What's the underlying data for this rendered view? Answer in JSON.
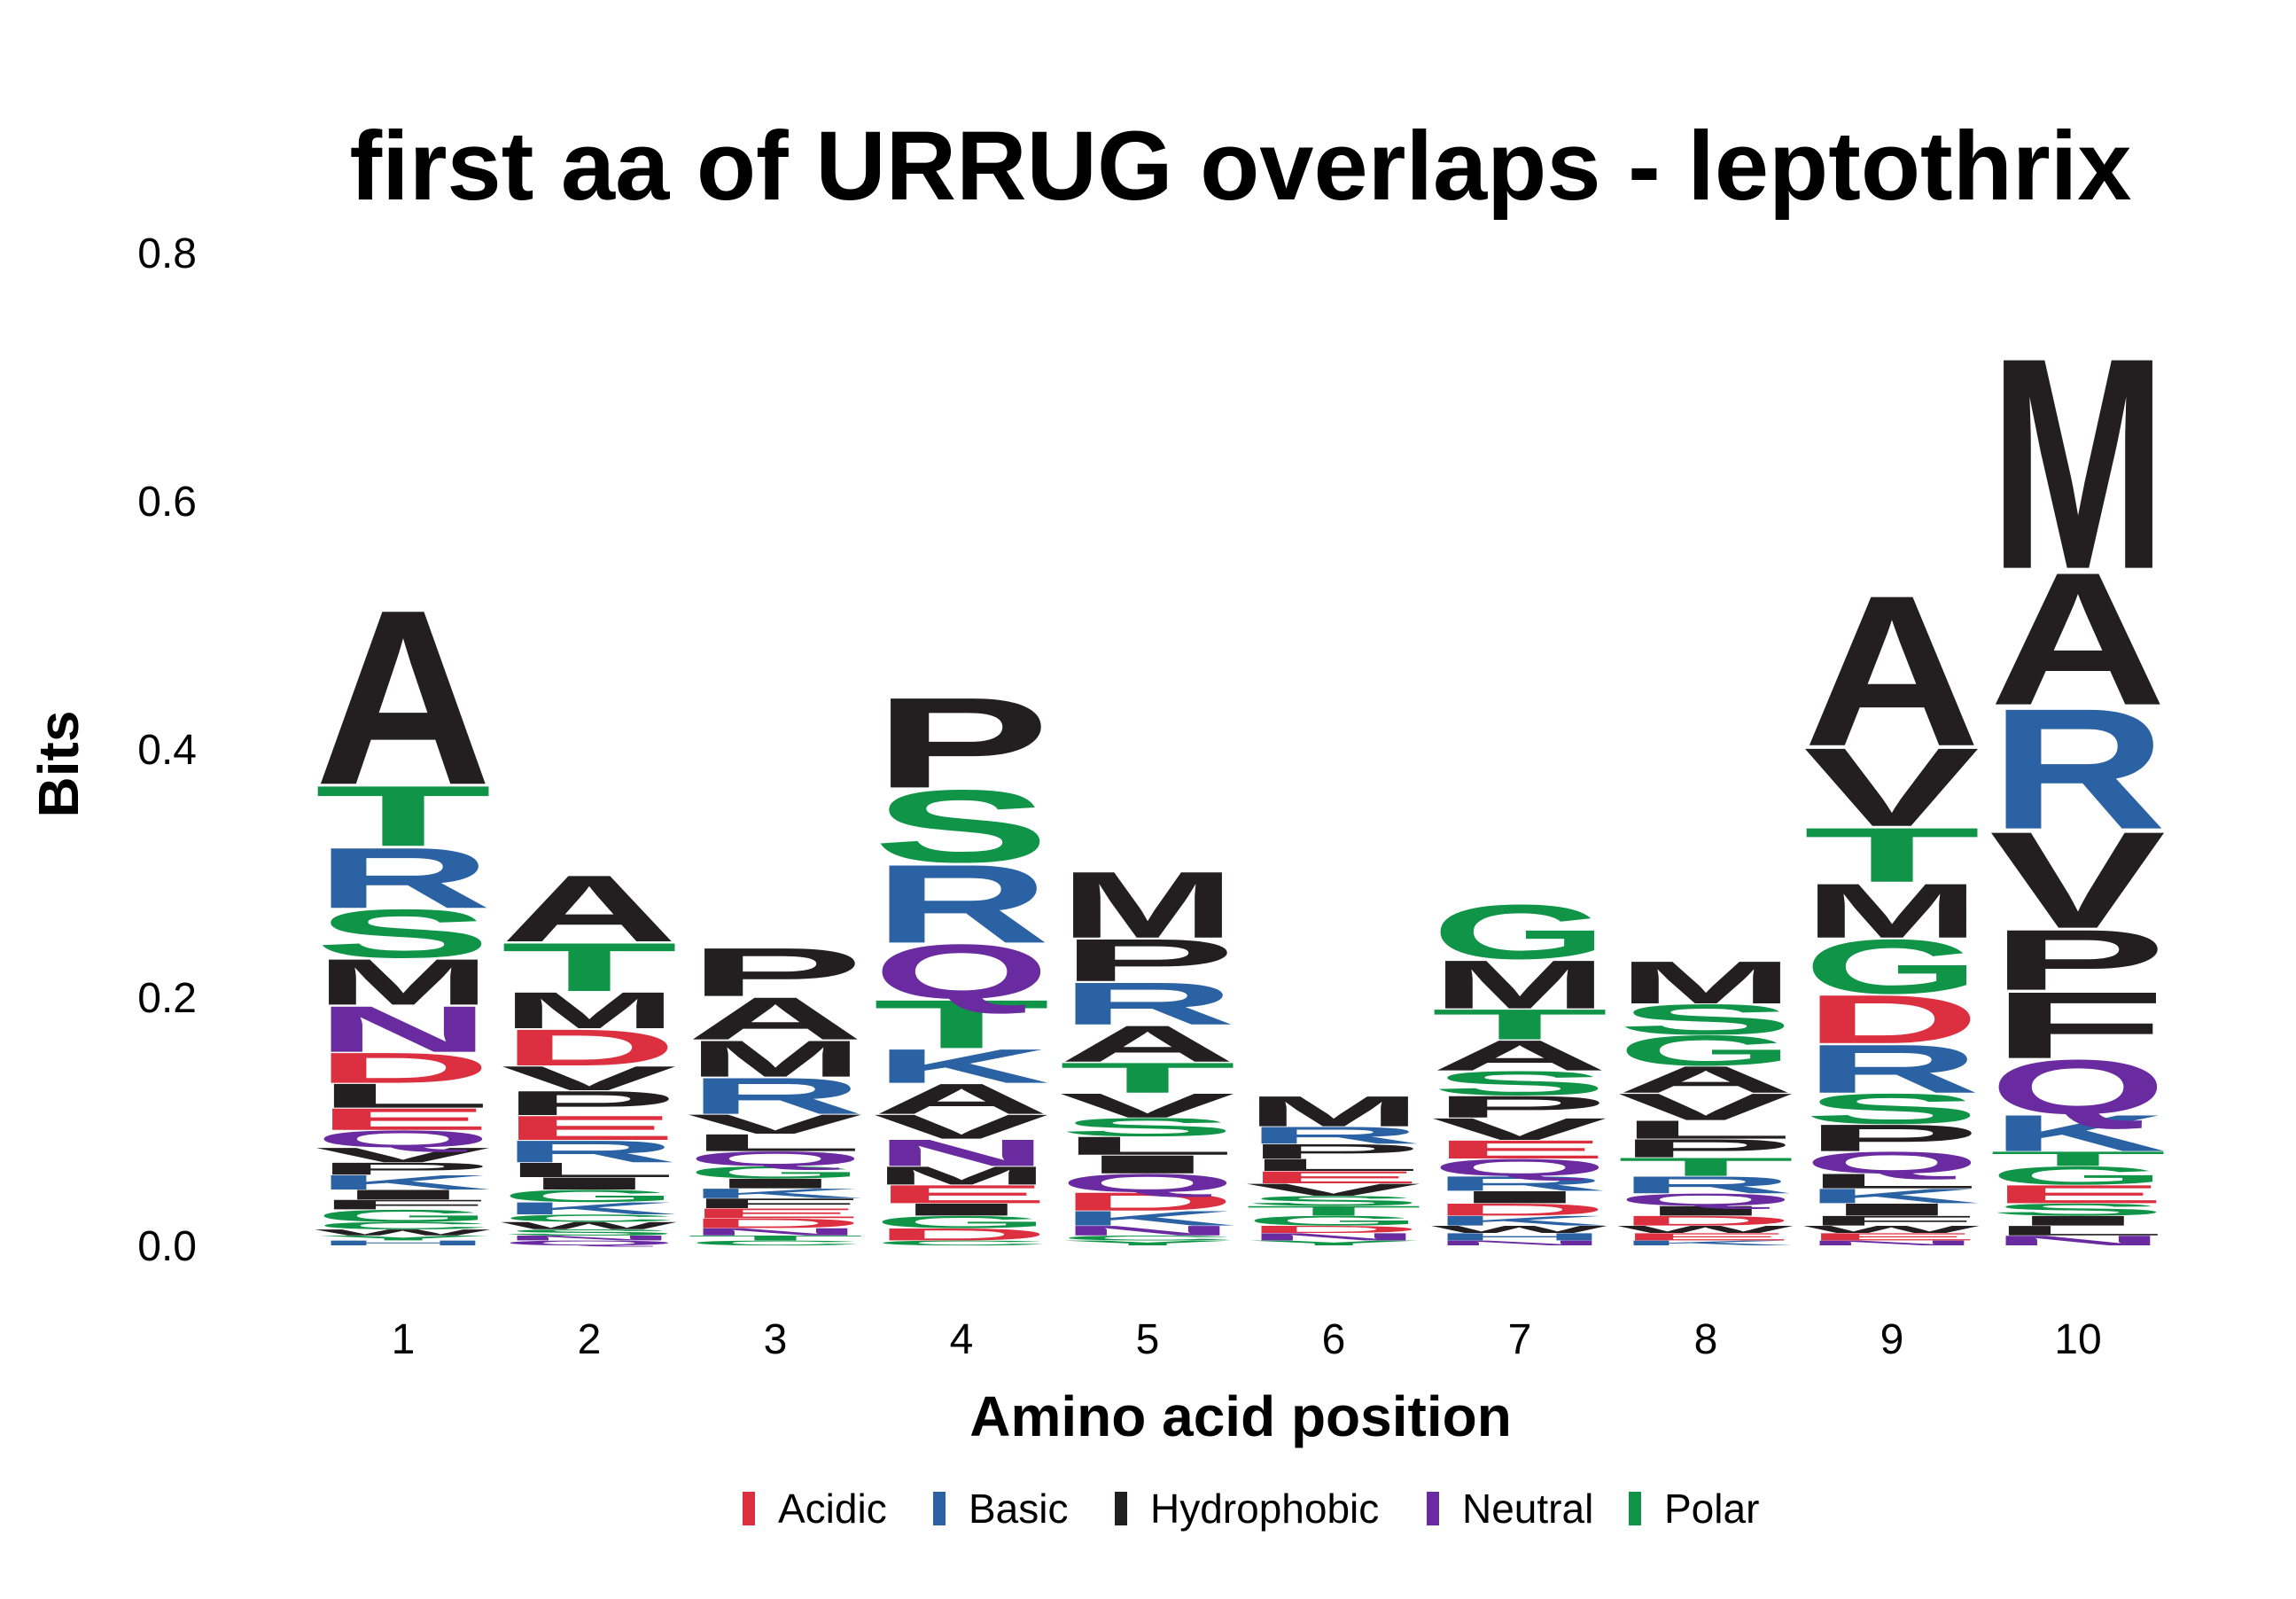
{
  "chart_data": {
    "type": "sequence-logo",
    "title": "first aa of URRUG overlaps - leptothrix",
    "xlabel": "Amino acid position",
    "ylabel": "Bits",
    "ylim": [
      0,
      0.8
    ],
    "yticks": [
      "0.0",
      "0.2",
      "0.4",
      "0.6",
      "0.8"
    ],
    "grid": false,
    "legend_position": "bottom",
    "class_colors": {
      "Acidic": "#DC2F3F",
      "Basic": "#2B62A3",
      "Hydrophobic": "#231F20",
      "Neutral": "#6A2BA0",
      "Polar": "#109447"
    },
    "legend": [
      "Acidic",
      "Basic",
      "Hydrophobic",
      "Neutral",
      "Polar"
    ],
    "residue_classes": {
      "D": "Acidic",
      "E": "Acidic",
      "H": "Basic",
      "K": "Basic",
      "R": "Basic",
      "A": "Hydrophobic",
      "F": "Hydrophobic",
      "I": "Hydrophobic",
      "L": "Hydrophobic",
      "M": "Hydrophobic",
      "P": "Hydrophobic",
      "V": "Hydrophobic",
      "W": "Hydrophobic",
      "N": "Neutral",
      "Q": "Neutral",
      "C": "Polar",
      "G": "Polar",
      "S": "Polar",
      "T": "Polar",
      "Y": "Polar"
    },
    "positions": [
      {
        "x": "1",
        "stack": [
          {
            "aa": "H",
            "bits": 0.004
          },
          {
            "aa": "Y",
            "bits": 0.004
          },
          {
            "aa": "W",
            "bits": 0.005
          },
          {
            "aa": "C",
            "bits": 0.006
          },
          {
            "aa": "G",
            "bits": 0.01
          },
          {
            "aa": "F",
            "bits": 0.008
          },
          {
            "aa": "I",
            "bits": 0.008
          },
          {
            "aa": "K",
            "bits": 0.012
          },
          {
            "aa": "P",
            "bits": 0.01
          },
          {
            "aa": "V",
            "bits": 0.012
          },
          {
            "aa": "Q",
            "bits": 0.014
          },
          {
            "aa": "E",
            "bits": 0.018
          },
          {
            "aa": "L",
            "bits": 0.02
          },
          {
            "aa": "D",
            "bits": 0.025
          },
          {
            "aa": "N",
            "bits": 0.038
          },
          {
            "aa": "M",
            "bits": 0.038
          },
          {
            "aa": "S",
            "bits": 0.04
          },
          {
            "aa": "R",
            "bits": 0.05
          },
          {
            "aa": "T",
            "bits": 0.05
          },
          {
            "aa": "A",
            "bits": 0.145
          }
        ]
      },
      {
        "x": "2",
        "stack": [
          {
            "aa": "Q",
            "bits": 0.004
          },
          {
            "aa": "N",
            "bits": 0.004
          },
          {
            "aa": "S",
            "bits": 0.005
          },
          {
            "aa": "W",
            "bits": 0.006
          },
          {
            "aa": "C",
            "bits": 0.006
          },
          {
            "aa": "K",
            "bits": 0.01
          },
          {
            "aa": "G",
            "bits": 0.01
          },
          {
            "aa": "I",
            "bits": 0.01
          },
          {
            "aa": "L",
            "bits": 0.012
          },
          {
            "aa": "R",
            "bits": 0.018
          },
          {
            "aa": "E",
            "bits": 0.02
          },
          {
            "aa": "P",
            "bits": 0.02
          },
          {
            "aa": "V",
            "bits": 0.02
          },
          {
            "aa": "D",
            "bits": 0.03
          },
          {
            "aa": "M",
            "bits": 0.03
          },
          {
            "aa": "T",
            "bits": 0.04
          },
          {
            "aa": "A",
            "bits": 0.055
          }
        ]
      },
      {
        "x": "3",
        "stack": [
          {
            "aa": "C",
            "bits": 0.004
          },
          {
            "aa": "T",
            "bits": 0.004
          },
          {
            "aa": "N",
            "bits": 0.006
          },
          {
            "aa": "D",
            "bits": 0.008
          },
          {
            "aa": "E",
            "bits": 0.008
          },
          {
            "aa": "F",
            "bits": 0.008
          },
          {
            "aa": "K",
            "bits": 0.008
          },
          {
            "aa": "I",
            "bits": 0.008
          },
          {
            "aa": "G",
            "bits": 0.01
          },
          {
            "aa": "Q",
            "bits": 0.012
          },
          {
            "aa": "L",
            "bits": 0.014
          },
          {
            "aa": "V",
            "bits": 0.016
          },
          {
            "aa": "R",
            "bits": 0.03
          },
          {
            "aa": "M",
            "bits": 0.03
          },
          {
            "aa": "A",
            "bits": 0.035
          },
          {
            "aa": "P",
            "bits": 0.04
          }
        ]
      },
      {
        "x": "4",
        "stack": [
          {
            "aa": "C",
            "bits": 0.004
          },
          {
            "aa": "D",
            "bits": 0.01
          },
          {
            "aa": "G",
            "bits": 0.01
          },
          {
            "aa": "I",
            "bits": 0.01
          },
          {
            "aa": "E",
            "bits": 0.015
          },
          {
            "aa": "M",
            "bits": 0.015
          },
          {
            "aa": "N",
            "bits": 0.022
          },
          {
            "aa": "V",
            "bits": 0.02
          },
          {
            "aa": "A",
            "bits": 0.025
          },
          {
            "aa": "K",
            "bits": 0.028
          },
          {
            "aa": "T",
            "bits": 0.04
          },
          {
            "aa": "Q",
            "bits": 0.045
          },
          {
            "aa": "R",
            "bits": 0.065
          },
          {
            "aa": "S",
            "bits": 0.06
          },
          {
            "aa": "P",
            "bits": 0.075
          }
        ]
      },
      {
        "x": "5",
        "stack": [
          {
            "aa": "Y",
            "bits": 0.004
          },
          {
            "aa": "C",
            "bits": 0.004
          },
          {
            "aa": "N",
            "bits": 0.008
          },
          {
            "aa": "K",
            "bits": 0.012
          },
          {
            "aa": "D",
            "bits": 0.015
          },
          {
            "aa": "Q",
            "bits": 0.015
          },
          {
            "aa": "I",
            "bits": 0.015
          },
          {
            "aa": "L",
            "bits": 0.015
          },
          {
            "aa": "S",
            "bits": 0.015
          },
          {
            "aa": "V",
            "bits": 0.02
          },
          {
            "aa": "T",
            "bits": 0.025
          },
          {
            "aa": "A",
            "bits": 0.03
          },
          {
            "aa": "R",
            "bits": 0.035
          },
          {
            "aa": "P",
            "bits": 0.035
          },
          {
            "aa": "M",
            "bits": 0.055
          }
        ]
      },
      {
        "x": "6",
        "stack": [
          {
            "aa": "Y",
            "bits": 0.004
          },
          {
            "aa": "N",
            "bits": 0.006
          },
          {
            "aa": "D",
            "bits": 0.006
          },
          {
            "aa": "G",
            "bits": 0.008
          },
          {
            "aa": "T",
            "bits": 0.008
          },
          {
            "aa": "S",
            "bits": 0.008
          },
          {
            "aa": "V",
            "bits": 0.01
          },
          {
            "aa": "E",
            "bits": 0.01
          },
          {
            "aa": "L",
            "bits": 0.01
          },
          {
            "aa": "P",
            "bits": 0.012
          },
          {
            "aa": "R",
            "bits": 0.014
          },
          {
            "aa": "M",
            "bits": 0.025
          }
        ]
      },
      {
        "x": "7",
        "stack": [
          {
            "aa": "N",
            "bits": 0.004
          },
          {
            "aa": "H",
            "bits": 0.006
          },
          {
            "aa": "W",
            "bits": 0.006
          },
          {
            "aa": "K",
            "bits": 0.008
          },
          {
            "aa": "D",
            "bits": 0.01
          },
          {
            "aa": "I",
            "bits": 0.01
          },
          {
            "aa": "R",
            "bits": 0.012
          },
          {
            "aa": "Q",
            "bits": 0.014
          },
          {
            "aa": "E",
            "bits": 0.015
          },
          {
            "aa": "V",
            "bits": 0.018
          },
          {
            "aa": "P",
            "bits": 0.018
          },
          {
            "aa": "S",
            "bits": 0.02
          },
          {
            "aa": "A",
            "bits": 0.025
          },
          {
            "aa": "T",
            "bits": 0.025
          },
          {
            "aa": "M",
            "bits": 0.04
          },
          {
            "aa": "G",
            "bits": 0.045
          }
        ]
      },
      {
        "x": "8",
        "stack": [
          {
            "aa": "K",
            "bits": 0.004
          },
          {
            "aa": "E",
            "bits": 0.006
          },
          {
            "aa": "W",
            "bits": 0.006
          },
          {
            "aa": "D",
            "bits": 0.008
          },
          {
            "aa": "I",
            "bits": 0.008
          },
          {
            "aa": "Q",
            "bits": 0.01
          },
          {
            "aa": "R",
            "bits": 0.014
          },
          {
            "aa": "T",
            "bits": 0.015
          },
          {
            "aa": "P",
            "bits": 0.015
          },
          {
            "aa": "L",
            "bits": 0.015
          },
          {
            "aa": "V",
            "bits": 0.022
          },
          {
            "aa": "A",
            "bits": 0.022
          },
          {
            "aa": "G",
            "bits": 0.025
          },
          {
            "aa": "S",
            "bits": 0.025
          },
          {
            "aa": "M",
            "bits": 0.035
          }
        ]
      },
      {
        "x": "9",
        "stack": [
          {
            "aa": "N",
            "bits": 0.004
          },
          {
            "aa": "E",
            "bits": 0.006
          },
          {
            "aa": "W",
            "bits": 0.006
          },
          {
            "aa": "F",
            "bits": 0.008
          },
          {
            "aa": "I",
            "bits": 0.01
          },
          {
            "aa": "K",
            "bits": 0.012
          },
          {
            "aa": "L",
            "bits": 0.012
          },
          {
            "aa": "Q",
            "bits": 0.018
          },
          {
            "aa": "P",
            "bits": 0.022
          },
          {
            "aa": "S",
            "bits": 0.025
          },
          {
            "aa": "R",
            "bits": 0.04
          },
          {
            "aa": "D",
            "bits": 0.04
          },
          {
            "aa": "G",
            "bits": 0.045
          },
          {
            "aa": "M",
            "bits": 0.045
          },
          {
            "aa": "T",
            "bits": 0.045
          },
          {
            "aa": "V",
            "bits": 0.065
          },
          {
            "aa": "A",
            "bits": 0.125
          }
        ]
      },
      {
        "x": "10",
        "stack": [
          {
            "aa": "N",
            "bits": 0.008
          },
          {
            "aa": "L",
            "bits": 0.008
          },
          {
            "aa": "I",
            "bits": 0.008
          },
          {
            "aa": "S",
            "bits": 0.01
          },
          {
            "aa": "E",
            "bits": 0.015
          },
          {
            "aa": "G",
            "bits": 0.015
          },
          {
            "aa": "T",
            "bits": 0.012
          },
          {
            "aa": "K",
            "bits": 0.03
          },
          {
            "aa": "Q",
            "bits": 0.045
          },
          {
            "aa": "F",
            "bits": 0.055
          },
          {
            "aa": "P",
            "bits": 0.05
          },
          {
            "aa": "V",
            "bits": 0.08
          },
          {
            "aa": "R",
            "bits": 0.1
          },
          {
            "aa": "A",
            "bits": 0.11
          },
          {
            "aa": "M",
            "bits": 0.175
          }
        ]
      }
    ]
  }
}
